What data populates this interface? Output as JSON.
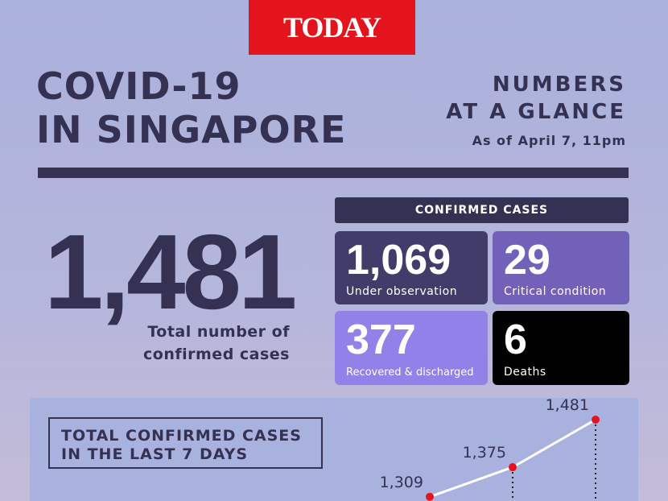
{
  "brand": "TODAY",
  "header": {
    "title_line1": "COVID-19",
    "title_line2": "IN SINGAPORE",
    "subtitle_line1": "NUMBERS",
    "subtitle_line2": "AT A GLANCE",
    "date": "As of April 7, 11pm"
  },
  "total": {
    "value": "1,481",
    "label_line1": "Total number of",
    "label_line2": "confirmed cases"
  },
  "confirmed": {
    "heading": "CONFIRMED CASES",
    "boxes": [
      {
        "value": "1,069",
        "label": "Under observation"
      },
      {
        "value": "29",
        "label": "Critical condition"
      },
      {
        "value": "377",
        "label": "Recovered & discharged"
      },
      {
        "value": "6",
        "label": "Deaths"
      }
    ]
  },
  "trend": {
    "title_line1": "TOTAL CONFIRMED CASES",
    "title_line2": "IN THE LAST 7 DAYS",
    "values": [
      1309,
      1375,
      1481
    ],
    "value_labels": [
      "1,309",
      "1,375",
      "1,481"
    ]
  }
}
